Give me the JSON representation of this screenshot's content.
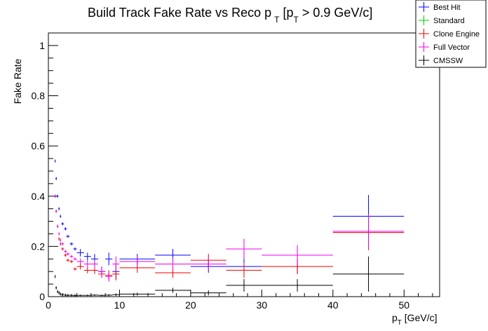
{
  "chart_data": {
    "type": "scatter",
    "title": {
      "main": "Build Track Fake Rate vs Reco p",
      "sub1": "T",
      "mid": " [p",
      "sub2": "T",
      "end": " > 0.9 GeV/c]"
    },
    "xlabel": {
      "main": "p",
      "sub": "T",
      "rest": " [GeV/c]"
    },
    "ylabel": "Fake Rate",
    "xlim": [
      0,
      55
    ],
    "ylim": [
      0,
      1.05
    ],
    "x_tick_labels": [
      "0",
      "10",
      "20",
      "30",
      "40",
      "50"
    ],
    "y_tick_labels": [
      "0",
      "0.2",
      "0.4",
      "0.6",
      "0.8",
      "1"
    ],
    "legend_position": "top-right",
    "series": [
      {
        "name": "Best Hit",
        "color": "#0000ff",
        "points": [
          {
            "x": 0.95,
            "xerr": 0.05,
            "y": 0.54
          },
          {
            "x": 1.1,
            "xerr": 0.1,
            "y": 0.47
          },
          {
            "x": 1.3,
            "xerr": 0.1,
            "y": 0.4
          },
          {
            "x": 1.5,
            "xerr": 0.1,
            "y": 0.35
          },
          {
            "x": 1.7,
            "xerr": 0.1,
            "y": 0.32
          },
          {
            "x": 2.0,
            "xerr": 0.2,
            "y": 0.29
          },
          {
            "x": 2.4,
            "xerr": 0.2,
            "y": 0.27
          },
          {
            "x": 2.75,
            "xerr": 0.25,
            "y": 0.24
          },
          {
            "x": 3.25,
            "xerr": 0.25,
            "y": 0.21
          },
          {
            "x": 3.75,
            "xerr": 0.25,
            "y": 0.19
          },
          {
            "x": 4.5,
            "xerr": 0.5,
            "y": 0.175,
            "yerr": 0.015
          },
          {
            "x": 5.5,
            "xerr": 0.5,
            "y": 0.16,
            "yerr": 0.015
          },
          {
            "x": 6.5,
            "xerr": 0.5,
            "y": 0.15,
            "yerr": 0.02
          },
          {
            "x": 7.5,
            "xerr": 0.5,
            "y": 0.1,
            "yerr": 0.02
          },
          {
            "x": 8.5,
            "xerr": 0.5,
            "y": 0.15,
            "yerr": 0.025
          },
          {
            "x": 9.5,
            "xerr": 0.5,
            "y": 0.1,
            "yerr": 0.03
          },
          {
            "x": 12.5,
            "xerr": 2.5,
            "y": 0.15,
            "yerr": 0.02
          },
          {
            "x": 17.5,
            "xerr": 2.5,
            "y": 0.165,
            "yerr": 0.025
          },
          {
            "x": 22.5,
            "xerr": 2.5,
            "y": 0.12,
            "yerr": 0.025
          },
          {
            "x": 27.5,
            "xerr": 2.5,
            "y": 0.12,
            "yerr": 0.035
          },
          {
            "x": 35.0,
            "xerr": 5.0,
            "y": 0.12,
            "yerr": 0.03
          },
          {
            "x": 45.0,
            "xerr": 5.0,
            "y": 0.32,
            "yerr": 0.085
          }
        ]
      },
      {
        "name": "Standard",
        "color": "#00cc00",
        "points": []
      },
      {
        "name": "Clone Engine",
        "color": "#ee0000",
        "points": [
          {
            "x": 0.95,
            "xerr": 0.05,
            "y": 0.4
          },
          {
            "x": 1.1,
            "xerr": 0.1,
            "y": 0.34
          },
          {
            "x": 1.3,
            "xerr": 0.1,
            "y": 0.28
          },
          {
            "x": 1.5,
            "xerr": 0.1,
            "y": 0.23
          },
          {
            "x": 1.7,
            "xerr": 0.1,
            "y": 0.21
          },
          {
            "x": 2.0,
            "xerr": 0.2,
            "y": 0.19
          },
          {
            "x": 2.4,
            "xerr": 0.2,
            "y": 0.165
          },
          {
            "x": 2.75,
            "xerr": 0.25,
            "y": 0.145
          },
          {
            "x": 3.25,
            "xerr": 0.25,
            "y": 0.14
          },
          {
            "x": 3.75,
            "xerr": 0.25,
            "y": 0.11
          },
          {
            "x": 4.5,
            "xerr": 0.5,
            "y": 0.12,
            "yerr": 0.012
          },
          {
            "x": 5.5,
            "xerr": 0.5,
            "y": 0.105,
            "yerr": 0.012
          },
          {
            "x": 6.5,
            "xerr": 0.5,
            "y": 0.105,
            "yerr": 0.015
          },
          {
            "x": 7.5,
            "xerr": 0.5,
            "y": 0.09,
            "yerr": 0.015
          },
          {
            "x": 8.5,
            "xerr": 0.5,
            "y": 0.085,
            "yerr": 0.02
          },
          {
            "x": 9.5,
            "xerr": 0.5,
            "y": 0.09,
            "yerr": 0.025
          },
          {
            "x": 12.5,
            "xerr": 2.5,
            "y": 0.115,
            "yerr": 0.02
          },
          {
            "x": 17.5,
            "xerr": 2.5,
            "y": 0.095,
            "yerr": 0.02
          },
          {
            "x": 22.5,
            "xerr": 2.5,
            "y": 0.145,
            "yerr": 0.025
          },
          {
            "x": 27.5,
            "xerr": 2.5,
            "y": 0.105,
            "yerr": 0.03
          },
          {
            "x": 35.0,
            "xerr": 5.0,
            "y": 0.12,
            "yerr": 0.03
          },
          {
            "x": 45.0,
            "xerr": 5.0,
            "y": 0.255,
            "yerr": 0.07
          }
        ]
      },
      {
        "name": "Full Vector",
        "color": "#ee00ee",
        "points": [
          {
            "x": 0.95,
            "xerr": 0.05,
            "y": 0.4
          },
          {
            "x": 1.1,
            "xerr": 0.1,
            "y": 0.34
          },
          {
            "x": 1.3,
            "xerr": 0.1,
            "y": 0.28
          },
          {
            "x": 1.5,
            "xerr": 0.1,
            "y": 0.25
          },
          {
            "x": 1.7,
            "xerr": 0.1,
            "y": 0.225
          },
          {
            "x": 2.0,
            "xerr": 0.2,
            "y": 0.21
          },
          {
            "x": 2.4,
            "xerr": 0.2,
            "y": 0.18
          },
          {
            "x": 2.75,
            "xerr": 0.25,
            "y": 0.17
          },
          {
            "x": 3.25,
            "xerr": 0.25,
            "y": 0.16
          },
          {
            "x": 3.75,
            "xerr": 0.25,
            "y": 0.15
          },
          {
            "x": 4.5,
            "xerr": 0.5,
            "y": 0.14,
            "yerr": 0.012
          },
          {
            "x": 5.5,
            "xerr": 0.5,
            "y": 0.13,
            "yerr": 0.015
          },
          {
            "x": 6.5,
            "xerr": 0.5,
            "y": 0.13,
            "yerr": 0.015
          },
          {
            "x": 7.5,
            "xerr": 0.5,
            "y": 0.1,
            "yerr": 0.02
          },
          {
            "x": 8.5,
            "xerr": 0.5,
            "y": 0.08,
            "yerr": 0.02
          },
          {
            "x": 9.5,
            "xerr": 0.5,
            "y": 0.13,
            "yerr": 0.03
          },
          {
            "x": 12.5,
            "xerr": 2.5,
            "y": 0.14,
            "yerr": 0.02
          },
          {
            "x": 17.5,
            "xerr": 2.5,
            "y": 0.13,
            "yerr": 0.025
          },
          {
            "x": 22.5,
            "xerr": 2.5,
            "y": 0.13,
            "yerr": 0.025
          },
          {
            "x": 27.5,
            "xerr": 2.5,
            "y": 0.19,
            "yerr": 0.04
          },
          {
            "x": 35.0,
            "xerr": 5.0,
            "y": 0.165,
            "yerr": 0.04
          },
          {
            "x": 45.0,
            "xerr": 5.0,
            "y": 0.26,
            "yerr": 0.07
          }
        ]
      },
      {
        "name": "CMSSW",
        "color": "#000000",
        "points": [
          {
            "x": 0.95,
            "xerr": 0.05,
            "y": 0.08
          },
          {
            "x": 1.1,
            "xerr": 0.1,
            "y": 0.035
          },
          {
            "x": 1.3,
            "xerr": 0.1,
            "y": 0.02
          },
          {
            "x": 1.5,
            "xerr": 0.1,
            "y": 0.015
          },
          {
            "x": 1.7,
            "xerr": 0.1,
            "y": 0.01
          },
          {
            "x": 2.0,
            "xerr": 0.2,
            "y": 0.008
          },
          {
            "x": 2.4,
            "xerr": 0.2,
            "y": 0.006
          },
          {
            "x": 2.75,
            "xerr": 0.25,
            "y": 0.005
          },
          {
            "x": 3.25,
            "xerr": 0.25,
            "y": 0.005
          },
          {
            "x": 3.75,
            "xerr": 0.25,
            "y": 0.004
          },
          {
            "x": 4.5,
            "xerr": 0.5,
            "y": 0.005,
            "yerr": 0.003
          },
          {
            "x": 5.5,
            "xerr": 0.5,
            "y": 0.005,
            "yerr": 0.003
          },
          {
            "x": 6.5,
            "xerr": 0.5,
            "y": 0.006,
            "yerr": 0.003
          },
          {
            "x": 7.5,
            "xerr": 0.5,
            "y": 0.005,
            "yerr": 0.003
          },
          {
            "x": 8.5,
            "xerr": 0.5,
            "y": 0.006,
            "yerr": 0.004
          },
          {
            "x": 9.5,
            "xerr": 0.5,
            "y": 0.008,
            "yerr": 0.005
          },
          {
            "x": 12.5,
            "xerr": 2.5,
            "y": 0.01,
            "yerr": 0.006
          },
          {
            "x": 17.5,
            "xerr": 2.5,
            "y": 0.025,
            "yerr": 0.01
          },
          {
            "x": 22.5,
            "xerr": 2.5,
            "y": 0.015,
            "yerr": 0.01
          },
          {
            "x": 27.5,
            "xerr": 2.5,
            "y": 0.045,
            "yerr": 0.025
          },
          {
            "x": 35.0,
            "xerr": 5.0,
            "y": 0.045,
            "yerr": 0.025
          },
          {
            "x": 45.0,
            "xerr": 5.0,
            "y": 0.09,
            "yerr": 0.07
          }
        ]
      }
    ]
  }
}
